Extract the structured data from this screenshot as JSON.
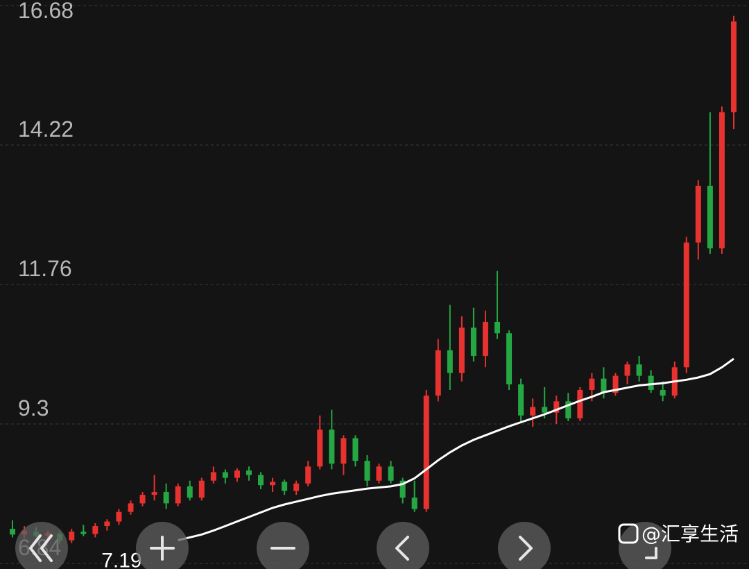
{
  "chart_data": {
    "type": "candlestick",
    "ylim": [
      6.84,
      16.68
    ],
    "yticks": [
      6.84,
      9.3,
      11.76,
      14.22,
      16.68
    ],
    "grid": true,
    "up_color": "#e8322f",
    "down_color": "#25a843",
    "open": [
      7.45,
      7.35,
      7.4,
      7.33,
      7.36,
      7.25,
      7.4,
      7.36,
      7.5,
      7.58,
      7.75,
      7.9,
      8.05,
      8.1,
      7.9,
      8.2,
      8.0,
      8.3,
      8.45,
      8.35,
      8.48,
      8.4,
      8.22,
      8.28,
      8.12,
      8.25,
      8.55,
      9.2,
      8.6,
      9.05,
      8.65,
      8.3,
      8.55,
      8.3,
      8.0,
      7.8,
      9.8,
      10.6,
      10.2,
      11.0,
      10.5,
      11.1,
      10.9,
      10.0,
      9.45,
      9.6,
      9.5,
      9.7,
      9.4,
      9.9,
      10.1,
      9.85,
      10.15,
      10.35,
      10.15,
      9.9,
      9.8,
      10.3,
      12.5,
      13.5,
      12.4,
      14.8
    ],
    "high": [
      7.6,
      7.5,
      7.48,
      7.42,
      7.4,
      7.45,
      7.52,
      7.55,
      7.62,
      7.8,
      7.95,
      8.1,
      8.4,
      8.25,
      8.25,
      8.3,
      8.35,
      8.55,
      8.5,
      8.52,
      8.55,
      8.45,
      8.35,
      8.32,
      8.3,
      8.65,
      9.45,
      9.55,
      9.1,
      9.1,
      8.75,
      8.6,
      8.65,
      8.35,
      8.3,
      9.9,
      10.8,
      11.4,
      11.2,
      11.35,
      11.3,
      12.0,
      10.95,
      10.1,
      9.75,
      9.95,
      9.8,
      9.85,
      9.95,
      10.2,
      10.3,
      10.2,
      10.4,
      10.5,
      10.25,
      10.05,
      10.4,
      12.6,
      13.6,
      14.8,
      14.9,
      16.5
    ],
    "low": [
      7.3,
      7.28,
      7.3,
      7.25,
      7.19,
      7.2,
      7.32,
      7.3,
      7.42,
      7.52,
      7.7,
      7.85,
      7.95,
      7.8,
      7.85,
      7.95,
      7.95,
      8.25,
      8.25,
      8.28,
      8.3,
      8.15,
      8.1,
      8.05,
      8.05,
      8.2,
      8.5,
      8.5,
      8.4,
      8.55,
      8.2,
      8.25,
      8.25,
      7.9,
      7.75,
      7.75,
      9.7,
      9.9,
      10.05,
      10.4,
      10.3,
      10.8,
      9.9,
      9.35,
      9.25,
      9.4,
      9.3,
      9.35,
      9.35,
      9.7,
      9.75,
      9.8,
      10.0,
      10.05,
      9.85,
      9.7,
      9.75,
      10.2,
      12.2,
      12.3,
      12.3,
      14.5
    ],
    "close": [
      7.35,
      7.42,
      7.33,
      7.38,
      7.25,
      7.4,
      7.36,
      7.5,
      7.58,
      7.75,
      7.9,
      8.05,
      8.1,
      7.9,
      8.2,
      8.0,
      8.3,
      8.45,
      8.35,
      8.48,
      8.4,
      8.22,
      8.28,
      8.12,
      8.25,
      8.55,
      9.2,
      8.6,
      9.05,
      8.65,
      8.3,
      8.55,
      8.3,
      8.0,
      7.8,
      9.8,
      10.6,
      10.2,
      11.0,
      10.5,
      11.1,
      10.9,
      10.0,
      9.45,
      9.6,
      9.5,
      9.7,
      9.4,
      9.9,
      10.1,
      9.85,
      10.15,
      10.35,
      10.15,
      9.9,
      9.8,
      10.3,
      12.5,
      13.5,
      12.4,
      14.8,
      16.4
    ],
    "moving_average": {
      "color": "#ffffff",
      "values": [
        null,
        null,
        null,
        null,
        null,
        null,
        null,
        null,
        null,
        null,
        null,
        null,
        null,
        null,
        7.25,
        7.3,
        7.35,
        7.42,
        7.5,
        7.58,
        7.66,
        7.74,
        7.82,
        7.88,
        7.93,
        7.98,
        8.03,
        8.07,
        8.1,
        8.13,
        8.16,
        8.18,
        8.2,
        8.24,
        8.34,
        8.5,
        8.66,
        8.8,
        8.92,
        9.02,
        9.1,
        9.18,
        9.26,
        9.33,
        9.4,
        9.47,
        9.55,
        9.63,
        9.71,
        9.78,
        9.86,
        9.9,
        9.94,
        9.98,
        10.0,
        10.02,
        10.05,
        10.08,
        10.12,
        10.18,
        10.3,
        10.45
      ]
    },
    "annotations": [
      {
        "text": "7.19",
        "value": 7.19
      }
    ],
    "watermark": "@汇享生活"
  }
}
